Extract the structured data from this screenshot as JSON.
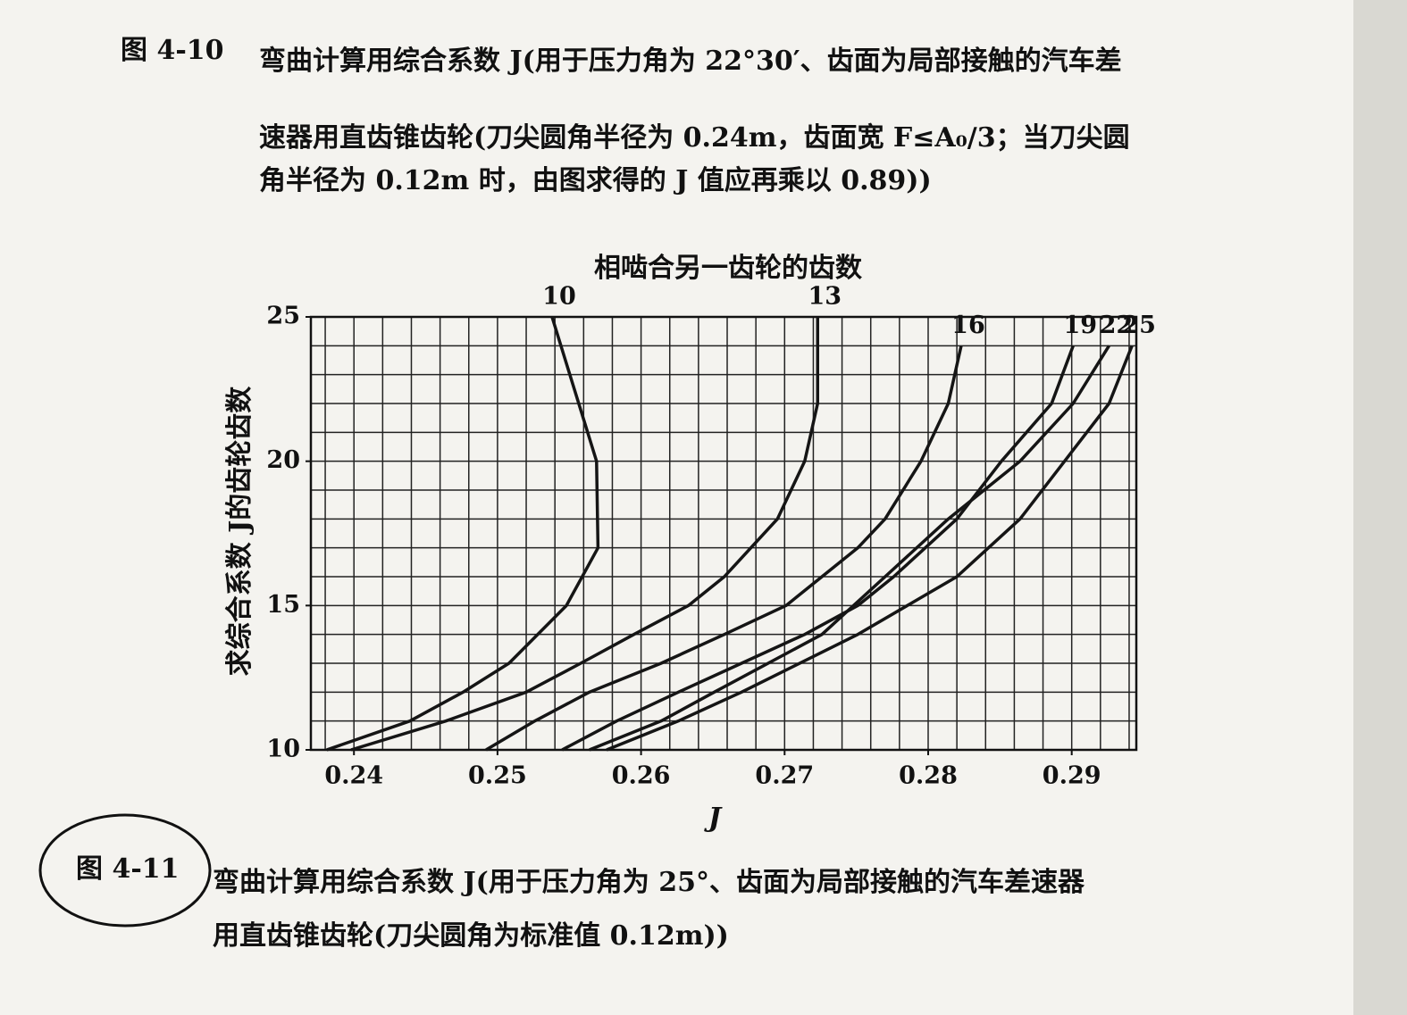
{
  "caption_top": {
    "label": "图 4-10",
    "lines": [
      "弯曲计算用综合系数 J(用于压力角为 22°30′、齿面为局部接触的汽车差",
      "速器用直齿锥齿轮(刀尖圆角半径为 0.24m，齿面宽 F≤A₀/3；当刀尖圆",
      "角半径为 0.12m 时，由图求得的 J 值应再乘以 0.89))"
    ]
  },
  "chart_data": {
    "type": "line",
    "title": "相啮合另一齿轮的齿数",
    "x_label": "J",
    "y_label": "求综合系数 J的齿轮齿数",
    "xlim": [
      0.237,
      0.2945
    ],
    "ylim": [
      10,
      25
    ],
    "xticks": [
      0.24,
      0.25,
      0.26,
      0.27,
      0.28,
      0.29
    ],
    "yticks": [
      10,
      15,
      20,
      25
    ],
    "minor_xticks": [
      0.238,
      0.24,
      0.242,
      0.244,
      0.246,
      0.248,
      0.25,
      0.252,
      0.254,
      0.256,
      0.258,
      0.26,
      0.262,
      0.264,
      0.266,
      0.268,
      0.27,
      0.272,
      0.274,
      0.276,
      0.278,
      0.28,
      0.282,
      0.284,
      0.286,
      0.288,
      0.29,
      0.292,
      0.294
    ],
    "minor_yticks": [
      11,
      12,
      13,
      14,
      15,
      16,
      17,
      18,
      19,
      20,
      21,
      22,
      23,
      24
    ],
    "grid": true,
    "series": [
      {
        "name": "10",
        "color": "#151515",
        "x": [
          0.2381,
          0.2439,
          0.2476,
          0.2508,
          0.2548,
          0.257,
          0.2569,
          0.2538
        ],
        "values": [
          10,
          11,
          12,
          13,
          15,
          17,
          20,
          25
        ]
      },
      {
        "name": "13",
        "color": "#151515",
        "x": [
          0.2398,
          0.2464,
          0.252,
          0.2558,
          0.2595,
          0.2633,
          0.2658,
          0.2695,
          0.2714,
          0.2723,
          0.2723
        ],
        "values": [
          10,
          11,
          12,
          13,
          14,
          15,
          16,
          18,
          20,
          22,
          25
        ]
      },
      {
        "name": "16",
        "color": "#151515",
        "x": [
          0.2492,
          0.2526,
          0.2564,
          0.2614,
          0.2658,
          0.2701,
          0.2726,
          0.2751,
          0.277,
          0.2795,
          0.2814,
          0.2823
        ],
        "values": [
          10,
          11,
          12,
          13,
          14,
          15,
          16,
          17,
          18,
          20,
          22,
          24
        ]
      },
      {
        "name": "19",
        "color": "#151515",
        "x": [
          0.2545,
          0.2583,
          0.2626,
          0.267,
          0.2714,
          0.2751,
          0.2776,
          0.282,
          0.2851,
          0.2886,
          0.2901
        ],
        "values": [
          10,
          11,
          12,
          13,
          14,
          15,
          16,
          18,
          20,
          22,
          24
        ]
      },
      {
        "name": "22",
        "color": "#151515",
        "x": [
          0.2564,
          0.2614,
          0.2651,
          0.2726,
          0.277,
          0.2814,
          0.2864,
          0.2901,
          0.2926
        ],
        "values": [
          10,
          11,
          12,
          14,
          16,
          18,
          20,
          22,
          24
        ]
      },
      {
        "name": "25",
        "color": "#151515",
        "x": [
          0.2576,
          0.2626,
          0.267,
          0.2751,
          0.282,
          0.2864,
          0.2895,
          0.2926,
          0.2942
        ],
        "values": [
          10,
          11,
          12,
          14,
          16,
          18,
          20,
          22,
          24
        ]
      }
    ]
  },
  "caption_bottom": {
    "label": "图 4-11",
    "lines": [
      "弯曲计算用综合系数 J(用于压力角为 25°、齿面为局部接触的汽车差速器",
      "用直齿锥齿轮(刀尖圆角为标准值 0.12m))"
    ]
  }
}
